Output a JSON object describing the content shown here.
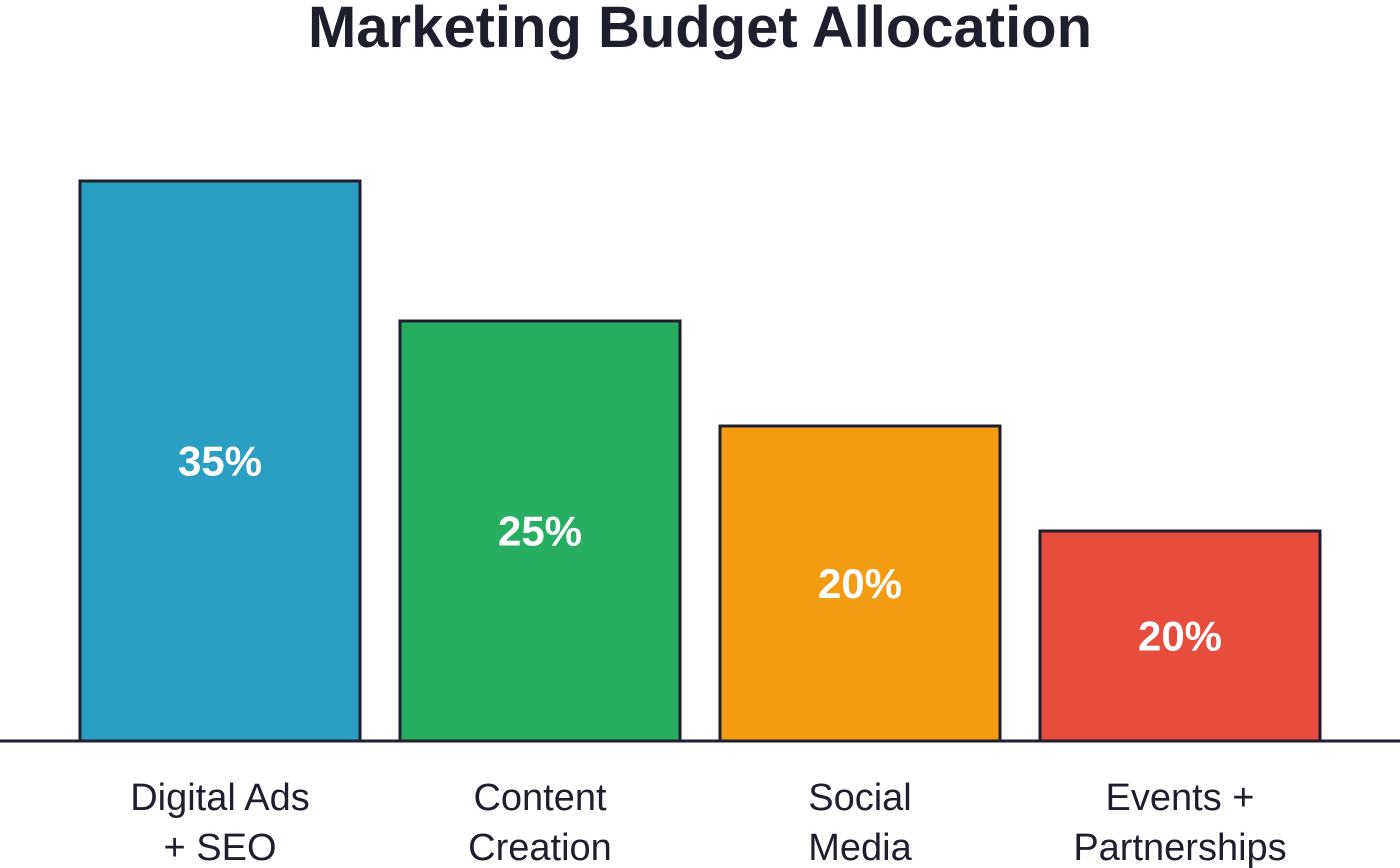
{
  "chart_data": {
    "type": "bar",
    "title": "Marketing Budget Allocation",
    "categories": [
      [
        "Digital Ads",
        "+ SEO"
      ],
      [
        "Content",
        "Creation"
      ],
      [
        "Social",
        "Media"
      ],
      [
        "Events +",
        "Partnerships"
      ]
    ],
    "values": [
      35,
      25,
      20,
      20
    ],
    "value_labels": [
      "35%",
      "25%",
      "20%",
      "20%"
    ],
    "colors": [
      "#2b9ec4",
      "#27ae60",
      "#f39c12",
      "#e74c3c"
    ],
    "bar_heights_rank": [
      1.0,
      0.75,
      0.5625,
      0.375
    ],
    "xlabel": "",
    "ylabel": "",
    "grid": false,
    "legend": "none"
  }
}
